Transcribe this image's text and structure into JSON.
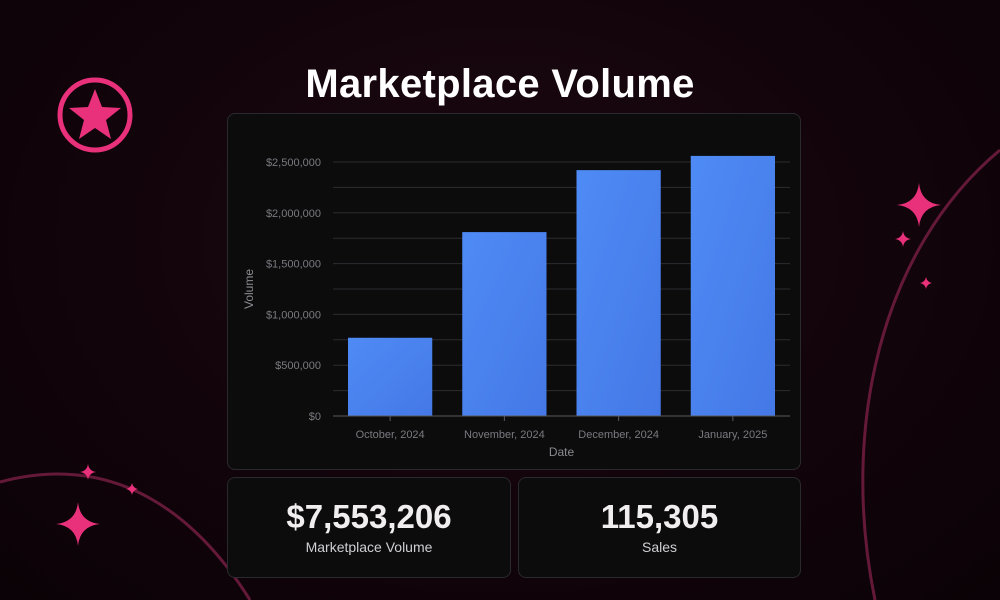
{
  "title": "Marketplace Volume",
  "colors": {
    "accent": "#e8317a",
    "bar": "#4b85ef",
    "grid": "#2c2c30"
  },
  "chart_data": {
    "type": "bar",
    "categories": [
      "October, 2024",
      "November, 2024",
      "December, 2024",
      "January, 2025"
    ],
    "values": [
      770000,
      1810000,
      2420000,
      2560000
    ],
    "xlabel": "Date",
    "ylabel": "Volume",
    "ylim": [
      0,
      2500000
    ],
    "yticks": [
      {
        "value": 0,
        "label": "$0"
      },
      {
        "value": 500000,
        "label": "$500,000"
      },
      {
        "value": 1000000,
        "label": "$1,000,000"
      },
      {
        "value": 1500000,
        "label": "$1,500,000"
      },
      {
        "value": 2000000,
        "label": "$2,000,000"
      },
      {
        "value": 2500000,
        "label": "$2,500,000"
      }
    ],
    "grid": true
  },
  "stats": [
    {
      "value": "$7,553,206",
      "label": "Marketplace Volume"
    },
    {
      "value": "115,305",
      "label": "Sales"
    }
  ]
}
